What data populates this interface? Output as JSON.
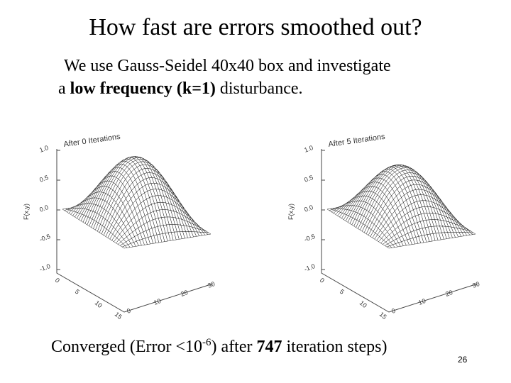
{
  "title": "How fast are errors smoothed out?",
  "body": {
    "line1": "We use Gauss-Seidel 40x40 box and investigate",
    "line2": {
      "before": "a",
      "bold": "low frequency (k=1)",
      "after": "disturbance."
    }
  },
  "plots": [
    {
      "label": "After 0 Iterations",
      "zlabel": "F(x,y)",
      "zticks": [
        "1.0",
        "0.5",
        "0.0",
        "-0.5",
        "-1.0"
      ],
      "xticks": [
        "0",
        "5",
        "10",
        "15"
      ],
      "yticks": [
        "0",
        "10",
        "20",
        "30"
      ]
    },
    {
      "label": "After 5 Iterations",
      "zlabel": "F(x,y)",
      "zticks": [
        "1.0",
        "0.5",
        "0.0",
        "-0.5",
        "-1.0"
      ],
      "xticks": [
        "0",
        "5",
        "10",
        "15"
      ],
      "yticks": [
        "0",
        "10",
        "20",
        "30"
      ]
    }
  ],
  "footer": {
    "before": "Converged (Error <10",
    "sup": "-6",
    "middle": ") after",
    "bold": "747",
    "after": "iteration steps)"
  },
  "page_number": "26"
}
